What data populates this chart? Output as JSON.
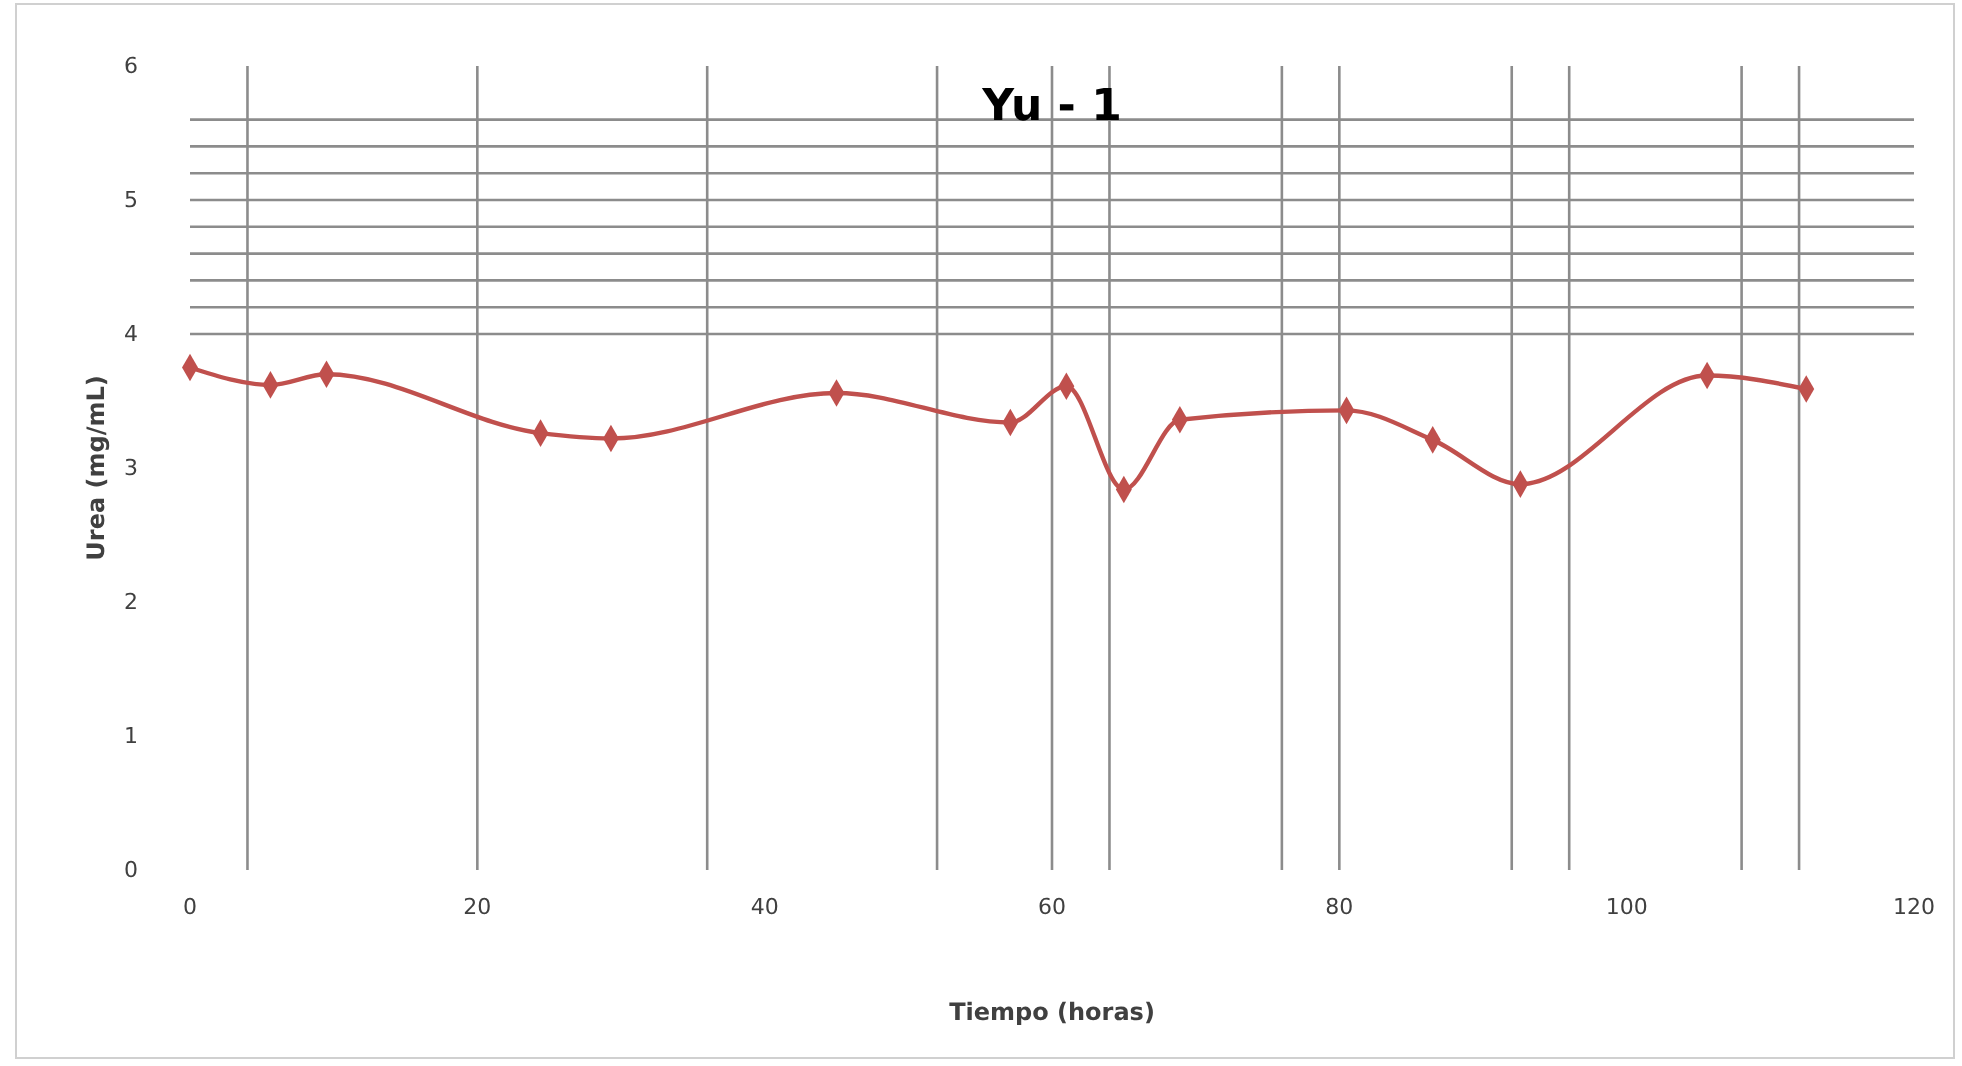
{
  "chart_data": {
    "type": "line",
    "title": "Yu - 1",
    "xlabel": "Tiempo (horas)",
    "ylabel": "Urea (mg/mL)",
    "x": [
      0,
      5.6,
      9.5,
      24.4,
      29.3,
      45,
      57.1,
      61,
      65,
      68.9,
      80.5,
      86.5,
      92.6,
      105.6,
      112.5
    ],
    "series": [
      {
        "color": "#c0504d",
        "values": [
          3.75,
          3.62,
          3.7,
          3.26,
          3.22,
          3.56,
          3.34,
          3.61,
          2.84,
          3.36,
          3.43,
          3.21,
          2.88,
          3.69,
          3.59
        ]
      }
    ],
    "xlim": [
      0,
      120
    ],
    "xticks": [
      0,
      20,
      40,
      60,
      80,
      100,
      120
    ],
    "ylim": [
      0,
      6
    ],
    "yticks": [
      0,
      1,
      2,
      3,
      4,
      5,
      6
    ],
    "marker": "diamond",
    "line_style": "solid",
    "grid": false,
    "ref_lines": [
      {
        "axis": "x",
        "value": 4
      },
      {
        "axis": "x",
        "value": 20
      },
      {
        "axis": "x",
        "value": 36
      },
      {
        "axis": "x",
        "value": 52
      },
      {
        "axis": "x",
        "value": 60
      },
      {
        "axis": "x",
        "value": 64
      },
      {
        "axis": "x",
        "value": 76
      },
      {
        "axis": "x",
        "value": 80
      },
      {
        "axis": "x",
        "value": 92
      },
      {
        "axis": "x",
        "value": 96
      },
      {
        "axis": "x",
        "value": 108
      },
      {
        "axis": "x",
        "value": 112
      },
      {
        "axis": "y",
        "value": 4
      },
      {
        "axis": "y",
        "value": 4.2
      },
      {
        "axis": "y",
        "value": 4.4
      },
      {
        "axis": "y",
        "value": 4.6
      },
      {
        "axis": "y",
        "value": 4.8
      },
      {
        "axis": "y",
        "value": 5
      },
      {
        "axis": "y",
        "value": 5.2
      },
      {
        "axis": "y",
        "value": 5.4
      },
      {
        "axis": "y",
        "value": 5.6
      }
    ]
  }
}
